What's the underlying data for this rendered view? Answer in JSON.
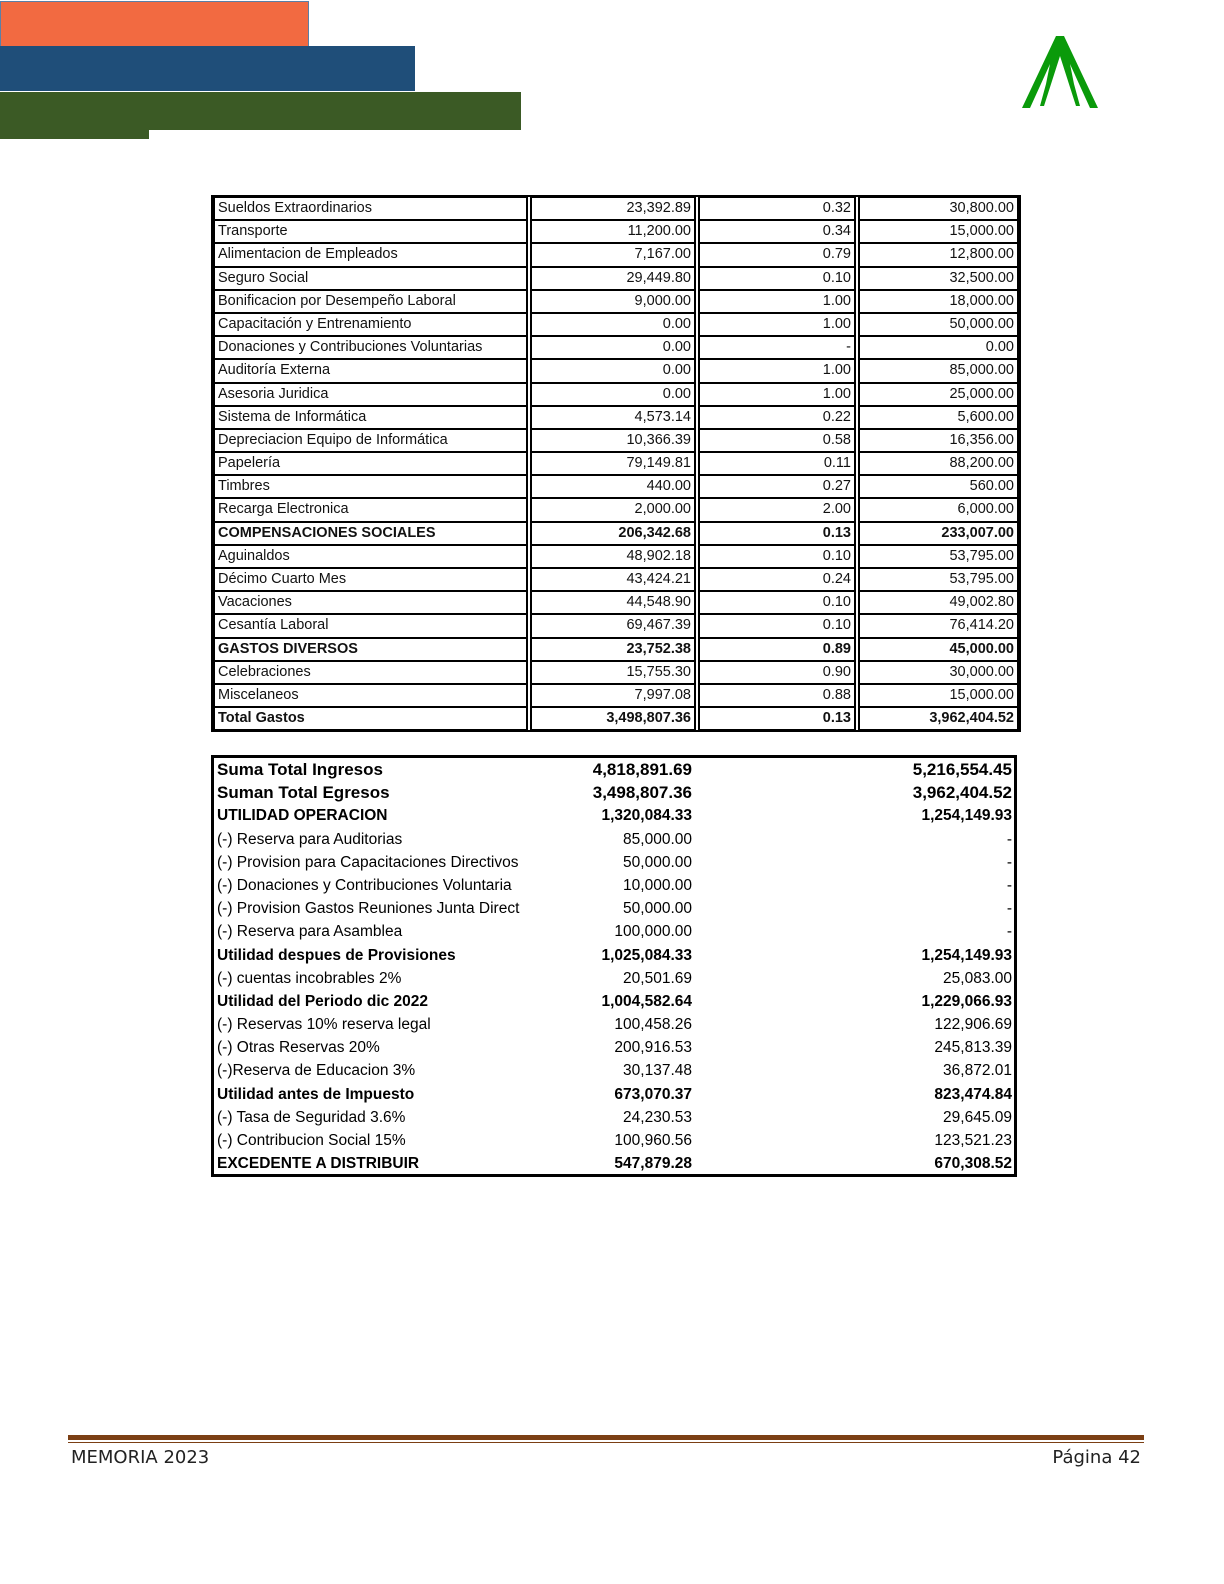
{
  "header": {
    "colors": {
      "orange": "#f26a41",
      "blue": "#1f4e79",
      "green": "#3b5a25",
      "logo": "#0a9a0a"
    },
    "logo_icon": "green-tree-arrow-logo"
  },
  "expenses_table": {
    "rows": [
      {
        "label": "Sueldos Extraordinarios",
        "v1": "23,392.89",
        "v2": "0.32",
        "v3": "30,800.00",
        "bold": false
      },
      {
        "label": "Transporte",
        "v1": "11,200.00",
        "v2": "0.34",
        "v3": "15,000.00",
        "bold": false
      },
      {
        "label": "Alimentacion de Empleados",
        "v1": "7,167.00",
        "v2": "0.79",
        "v3": "12,800.00",
        "bold": false
      },
      {
        "label": "Seguro Social",
        "v1": "29,449.80",
        "v2": "0.10",
        "v3": "32,500.00",
        "bold": false
      },
      {
        "label": "Bonificacion  por Desempeño Laboral",
        "v1": "9,000.00",
        "v2": "1.00",
        "v3": "18,000.00",
        "bold": false
      },
      {
        "label": "Capacitación y Entrenamiento",
        "v1": "0.00",
        "v2": "1.00",
        "v3": "50,000.00",
        "bold": false
      },
      {
        "label": "Donaciones y Contribuciones Voluntarias",
        "v1": "0.00",
        "v2": "-",
        "v3": "0.00",
        "bold": false
      },
      {
        "label": "Auditoría Externa",
        "v1": "0.00",
        "v2": "1.00",
        "v3": "85,000.00",
        "bold": false
      },
      {
        "label": "Asesoria Juridica",
        "v1": "0.00",
        "v2": "1.00",
        "v3": "25,000.00",
        "bold": false
      },
      {
        "label": "Sistema de Informática",
        "v1": "4,573.14",
        "v2": "0.22",
        "v3": "5,600.00",
        "bold": false
      },
      {
        "label": "Depreciacion Equipo de Informática",
        "v1": "10,366.39",
        "v2": "0.58",
        "v3": "16,356.00",
        "bold": false
      },
      {
        "label": "Papelería",
        "v1": "79,149.81",
        "v2": "0.11",
        "v3": "88,200.00",
        "bold": false
      },
      {
        "label": "Timbres",
        "v1": "440.00",
        "v2": "0.27",
        "v3": "560.00",
        "bold": false
      },
      {
        "label": "Recarga Electronica",
        "v1": "2,000.00",
        "v2": "2.00",
        "v3": "6,000.00",
        "bold": false
      },
      {
        "label": "COMPENSACIONES SOCIALES",
        "v1": "206,342.68",
        "v2": "0.13",
        "v3": "233,007.00",
        "bold": true
      },
      {
        "label": "Aguinaldos",
        "v1": "48,902.18",
        "v2": "0.10",
        "v3": "53,795.00",
        "bold": false
      },
      {
        "label": "Décimo Cuarto Mes",
        "v1": "43,424.21",
        "v2": "0.24",
        "v3": "53,795.00",
        "bold": false
      },
      {
        "label": "Vacaciones",
        "v1": "44,548.90",
        "v2": "0.10",
        "v3": "49,002.80",
        "bold": false
      },
      {
        "label": "Cesantía Laboral",
        "v1": "69,467.39",
        "v2": "0.10",
        "v3": "76,414.20",
        "bold": false
      },
      {
        "label": "GASTOS DIVERSOS",
        "v1": "23,752.38",
        "v2": "0.89",
        "v3": "45,000.00",
        "bold": true
      },
      {
        "label": "Celebraciones",
        "v1": "15,755.30",
        "v2": "0.90",
        "v3": "30,000.00",
        "bold": false
      },
      {
        "label": "Miscelaneos",
        "v1": "7,997.08",
        "v2": "0.88",
        "v3": "15,000.00",
        "bold": false
      },
      {
        "label": "Total Gastos",
        "v1": "3,498,807.36",
        "v2": "0.13",
        "v3": "3,962,404.52",
        "bold": true
      }
    ]
  },
  "summary_table": {
    "rows": [
      {
        "label": "Suma Total Ingresos",
        "v1": "4,818,891.69",
        "v2": "5,216,554.45",
        "style": "h"
      },
      {
        "label": "Suman Total Egresos",
        "v1": "3,498,807.36",
        "v2": "3,962,404.52",
        "style": "h"
      },
      {
        "label": "UTILIDAD OPERACION",
        "v1": "1,320,084.33",
        "v2": "1,254,149.93",
        "style": "b"
      },
      {
        "label": "(-) Reserva para Auditorias",
        "v1": "85,000.00",
        "v2": "-",
        "style": ""
      },
      {
        "label": "(-) Provision para Capacitaciones Directivos",
        "v1": "50,000.00",
        "v2": "-",
        "style": ""
      },
      {
        "label": "(-) Donaciones y Contribuciones Voluntaria",
        "v1": "10,000.00",
        "v2": "-",
        "style": ""
      },
      {
        "label": "(-) Provision Gastos Reuniones Junta Direct",
        "v1": "50,000.00",
        "v2": "-",
        "style": ""
      },
      {
        "label": "(-) Reserva para Asamblea",
        "v1": "100,000.00",
        "v2": "-",
        "style": ""
      },
      {
        "label": "Utilidad despues de Provisiones",
        "v1": "1,025,084.33",
        "v2": "1,254,149.93",
        "style": "b"
      },
      {
        "label": "(-) cuentas incobrables  2%",
        "v1": "20,501.69",
        "v2": "25,083.00",
        "style": ""
      },
      {
        "label": "Utilidad del Periodo dic 2022",
        "v1": "1,004,582.64",
        "v2": "1,229,066.93",
        "style": "b"
      },
      {
        "label": "(-) Reservas 10%  reserva legal",
        "v1": "100,458.26",
        "v2": "122,906.69",
        "style": ""
      },
      {
        "label": "(-) Otras Reservas 20%",
        "v1": "200,916.53",
        "v2": "245,813.39",
        "style": ""
      },
      {
        "label": "(-)Reserva de Educacion 3%",
        "v1": "30,137.48",
        "v2": "36,872.01",
        "style": ""
      },
      {
        "label": "Utilidad antes de Impuesto",
        "v1": "673,070.37",
        "v2": "823,474.84",
        "style": "b"
      },
      {
        "label": "(-) Tasa de Seguridad  3.6%",
        "v1": "24,230.53",
        "v2": "29,645.09",
        "style": ""
      },
      {
        "label": "(-) Contribucion Social 15%",
        "v1": "100,960.56",
        "v2": "123,521.23",
        "style": ""
      },
      {
        "label": "EXCEDENTE A DISTRIBUIR",
        "v1": "547,879.28",
        "v2": "670,308.52",
        "style": "b"
      }
    ]
  },
  "footer": {
    "left": "MEMORIA 2023",
    "right": "Página 42"
  }
}
